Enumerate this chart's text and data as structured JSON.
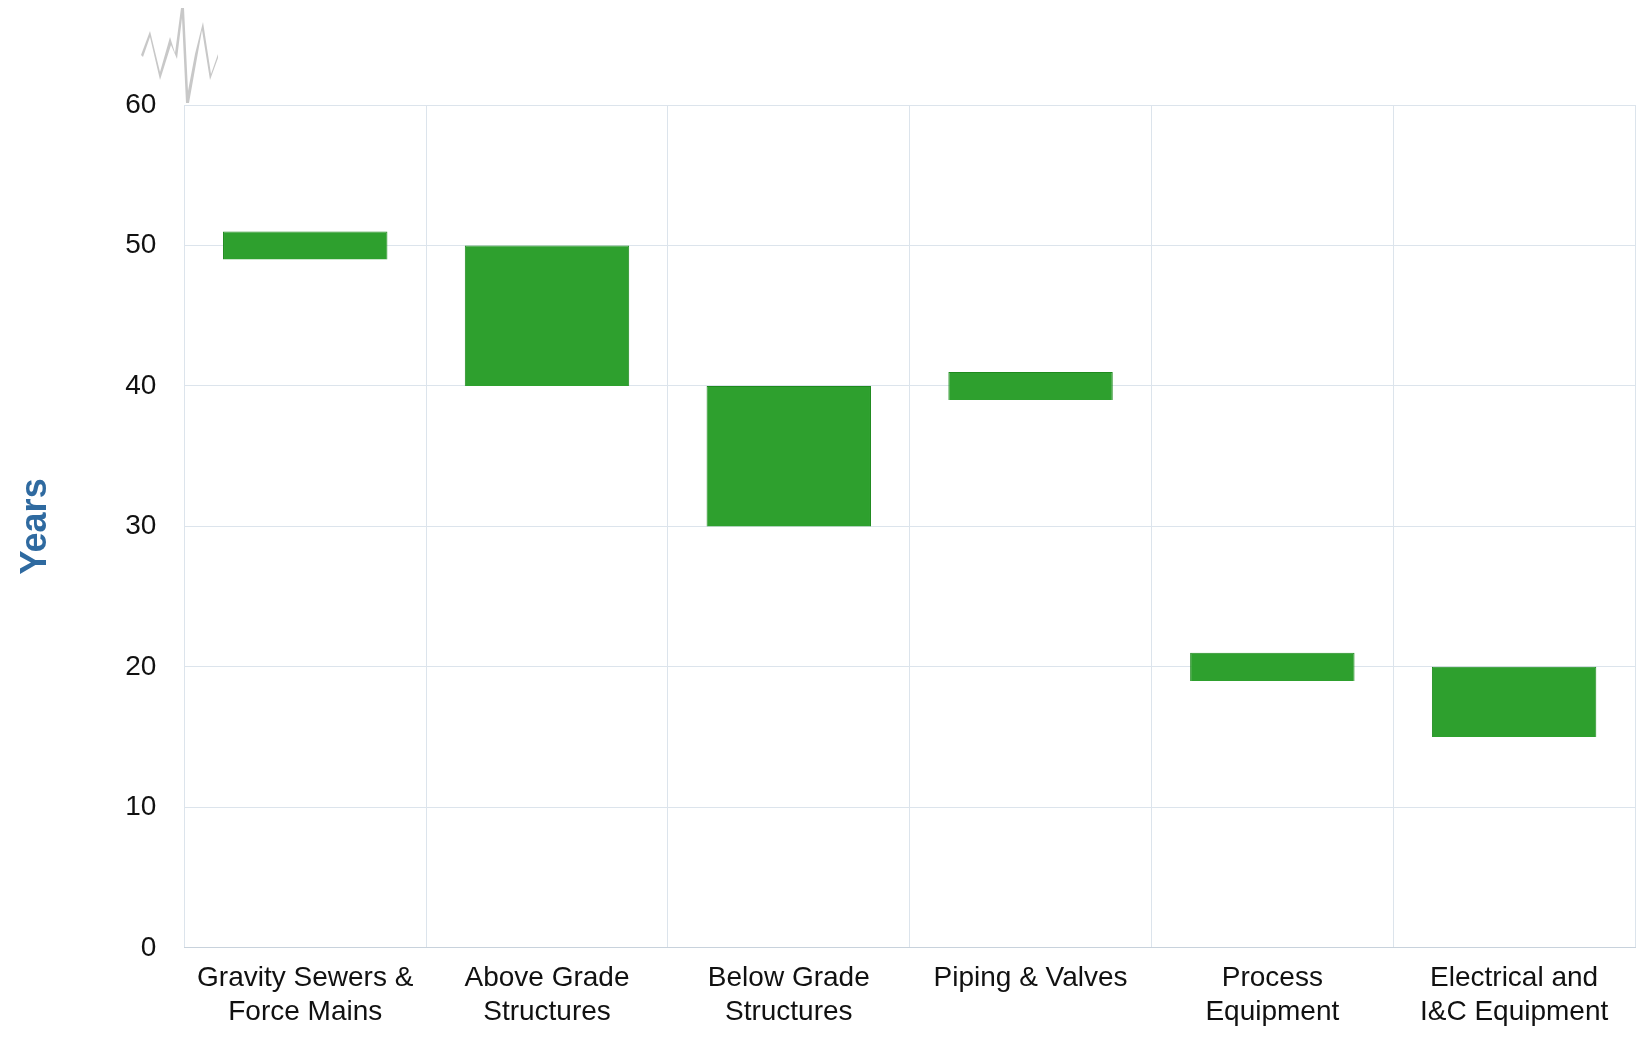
{
  "chart_data": {
    "type": "bar",
    "ylabel": "Years",
    "categories": [
      "Gravity Sewers & Force Mains",
      "Above Grade Structures",
      "Below Grade Structures",
      "Piping & Valves",
      "Process Equipment",
      "Electrical and I&C Equipment"
    ],
    "base": [
      49,
      40,
      30,
      39,
      19,
      15
    ],
    "values": [
      2,
      10,
      10,
      2,
      2,
      5
    ],
    "color": "#2ea02e",
    "ylim": [
      0,
      60
    ],
    "yticks": [
      0,
      10,
      20,
      30,
      40,
      50,
      60
    ],
    "grid": true
  }
}
